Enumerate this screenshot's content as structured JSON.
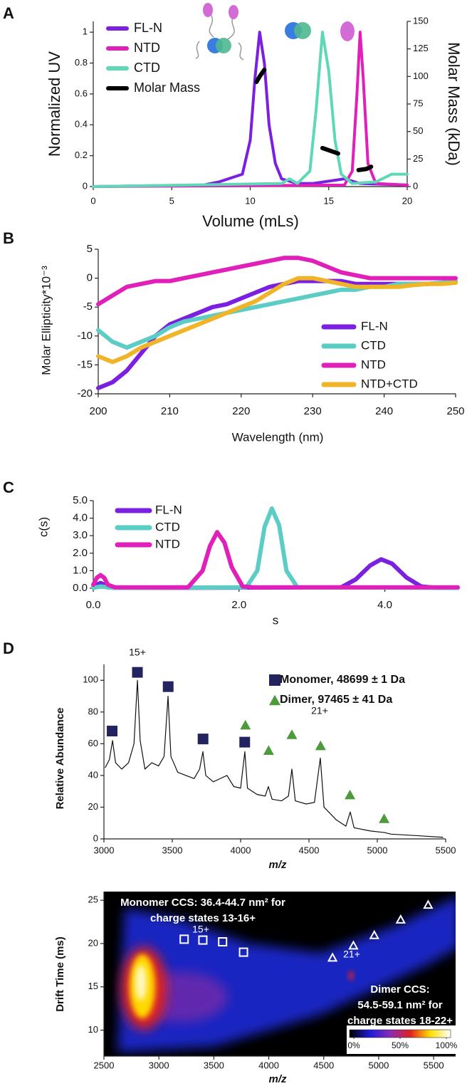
{
  "chart_data": [
    {
      "panel": "A",
      "type": "line",
      "xlabel": "Volume (mLs)",
      "ylabel": "Normalized UV",
      "y2label": "Molar Mass (kDa)",
      "xlim": [
        0,
        20
      ],
      "xticks": [
        0,
        5,
        10,
        15,
        20
      ],
      "ylim": [
        0,
        1.07
      ],
      "yticks": [
        0,
        0.2,
        0.4,
        0.6,
        0.8,
        1
      ],
      "y2lim": [
        0,
        150
      ],
      "y2ticks": [
        0,
        25,
        50,
        75,
        100,
        125,
        150
      ],
      "legend": "upper left",
      "series": [
        {
          "name": "FL-N",
          "color": "#7b1fe0",
          "x": [
            0,
            7,
            8,
            9.5,
            10,
            10.3,
            10.6,
            10.9,
            11.2,
            11.6,
            12,
            13,
            14,
            16,
            17,
            20
          ],
          "values": [
            0,
            0.01,
            0.03,
            0.08,
            0.3,
            0.7,
            1,
            0.8,
            0.4,
            0.15,
            0.05,
            0.02,
            0.02,
            0.05,
            0.02,
            0.01
          ]
        },
        {
          "name": "NTD",
          "color": "#e020b8",
          "x": [
            0,
            16,
            16.5,
            16.8,
            17,
            17.2,
            17.5,
            18,
            20
          ],
          "values": [
            0,
            0.01,
            0.1,
            0.6,
            1,
            0.7,
            0.15,
            0.02,
            0.01
          ]
        },
        {
          "name": "CTD",
          "color": "#5fd8b8",
          "x": [
            0,
            12,
            12.5,
            13,
            13.8,
            14.2,
            14.6,
            15,
            15.4,
            15.8,
            16.5,
            18,
            19,
            20
          ],
          "values": [
            0,
            0.02,
            0.05,
            0.02,
            0.1,
            0.5,
            1,
            0.75,
            0.3,
            0.08,
            0.02,
            0.03,
            0.08,
            0.08
          ]
        },
        {
          "name": "Molar Mass",
          "color": "#000000",
          "axis": "y2",
          "x": [
            10.4,
            10.6,
            10.9,
            12,
            14.6,
            15,
            15.6,
            16.5,
            16.9,
            17.4,
            17.7
          ],
          "values": [
            95,
            100,
            106,
            null,
            35,
            33,
            30,
            null,
            15,
            16,
            18
          ]
        }
      ]
    },
    {
      "panel": "B",
      "type": "line",
      "xlabel": "Wavelength (nm)",
      "ylabel": "Molar Ellipticity*10⁻³",
      "xlim": [
        200,
        250
      ],
      "xticks": [
        200,
        210,
        220,
        230,
        240,
        250
      ],
      "ylim": [
        -20,
        5
      ],
      "yticks": [
        -20,
        -15,
        -10,
        -5,
        0,
        5
      ],
      "legend": "lower right",
      "x": [
        200,
        202,
        204,
        206,
        208,
        210,
        212,
        214,
        216,
        218,
        220,
        222,
        224,
        226,
        228,
        230,
        232,
        234,
        236,
        238,
        240,
        242,
        244,
        246,
        248,
        250
      ],
      "series": [
        {
          "name": "FL-N",
          "color": "#7b1fe0",
          "values": [
            -19,
            -18,
            -16,
            -13,
            -10,
            -8,
            -7,
            -6,
            -5,
            -4.5,
            -3.5,
            -2.5,
            -1.5,
            -1,
            -0.5,
            -0.5,
            -0.5,
            -0.5,
            -1,
            -1,
            -1,
            -1,
            -1,
            -1,
            -0.8,
            -0.5
          ]
        },
        {
          "name": "CTD",
          "color": "#5ccdc4",
          "values": [
            -9,
            -11,
            -12,
            -11,
            -10,
            -8.5,
            -7.5,
            -7,
            -6.5,
            -6,
            -5.5,
            -5,
            -4.5,
            -4,
            -3.5,
            -3,
            -2.5,
            -2,
            -2,
            -1.5,
            -1.5,
            -1,
            -1,
            -1,
            -0.8,
            -0.5
          ]
        },
        {
          "name": "NTD",
          "color": "#e020b8",
          "values": [
            -4.5,
            -3,
            -1.5,
            -1,
            -0.5,
            -0.5,
            0,
            0.5,
            1,
            1.5,
            2,
            2.5,
            3,
            3.5,
            3.5,
            3,
            2,
            1,
            0.5,
            0,
            0,
            0,
            0,
            0,
            0,
            0
          ]
        },
        {
          "name": "NTD+CTD",
          "color": "#f0b428",
          "values": [
            -13.5,
            -14.5,
            -13.5,
            -12,
            -11,
            -10,
            -9,
            -8,
            -7,
            -6,
            -5,
            -4,
            -2.5,
            -1,
            0,
            0,
            -0.5,
            -1,
            -1.5,
            -1.5,
            -1.5,
            -1.5,
            -1.2,
            -1,
            -1,
            -0.8
          ]
        }
      ]
    },
    {
      "panel": "C",
      "type": "line",
      "xlabel": "s",
      "ylabel": "c(s)",
      "xlim": [
        0,
        5
      ],
      "xticks": [
        {
          "value": 0,
          "label": "0.0"
        },
        {
          "value": 2,
          "label": "2.0"
        },
        {
          "value": 4,
          "label": "4.0"
        }
      ],
      "ylim": [
        0,
        5
      ],
      "yticks": [
        {
          "value": 0,
          "label": "0.0"
        },
        {
          "value": 1,
          "label": "1.0"
        },
        {
          "value": 2,
          "label": "2.0"
        },
        {
          "value": 3,
          "label": "3.0"
        },
        {
          "value": 4,
          "label": "4.0"
        },
        {
          "value": 5,
          "label": "5.0"
        }
      ],
      "legend": "upper left",
      "series": [
        {
          "name": "FL-N",
          "color": "#7b1fe0",
          "x": [
            0,
            0.05,
            0.1,
            0.15,
            0.2,
            0.3,
            0.5,
            3.4,
            3.6,
            3.8,
            3.95,
            4.1,
            4.3,
            4.5,
            4.7,
            5
          ],
          "values": [
            0.05,
            0.2,
            0.3,
            0.2,
            0.05,
            0.02,
            0.02,
            0.05,
            0.5,
            1.3,
            1.65,
            1.4,
            0.6,
            0.1,
            0.02,
            0.02
          ]
        },
        {
          "name": "CTD",
          "color": "#5ccdc4",
          "x": [
            0,
            0.1,
            0.2,
            0.3,
            2.1,
            2.25,
            2.35,
            2.45,
            2.55,
            2.65,
            2.8,
            5
          ],
          "values": [
            0.02,
            0.1,
            0.05,
            0.02,
            0.05,
            1,
            3.5,
            4.55,
            3.6,
            1,
            0.05,
            0.02
          ]
        },
        {
          "name": "NTD",
          "color": "#e020b8",
          "x": [
            0,
            0.05,
            0.1,
            0.15,
            0.2,
            0.3,
            1.3,
            1.5,
            1.6,
            1.7,
            1.8,
            1.9,
            2.05,
            2.2,
            5
          ],
          "values": [
            0.2,
            0.6,
            0.75,
            0.6,
            0.2,
            0.05,
            0.05,
            1,
            2.4,
            3.2,
            2.6,
            1.2,
            0.1,
            0.05,
            0.05
          ]
        }
      ]
    },
    {
      "panel": "D",
      "type": "spectrum",
      "xlabel": "m/z",
      "ylabel": "Relative Abundance",
      "xlim": [
        3000,
        5500
      ],
      "xticks": [
        3000,
        3500,
        4000,
        4500,
        5000,
        5500
      ],
      "ylim": [
        0,
        110
      ],
      "yticks": [
        0,
        20,
        40,
        60,
        80,
        100
      ],
      "legend": "upper right",
      "annotations": [
        "15+",
        "21+"
      ],
      "trace": {
        "color": "#111111",
        "x": [
          3010,
          3040,
          3063,
          3085,
          3130,
          3180,
          3220,
          3245,
          3265,
          3300,
          3350,
          3400,
          3440,
          3469,
          3490,
          3540,
          3600,
          3660,
          3700,
          3724,
          3745,
          3800,
          3850,
          3900,
          3950,
          4000,
          4031,
          4050,
          4120,
          4180,
          4203,
          4230,
          4300,
          4350,
          4375,
          4400,
          4480,
          4540,
          4583,
          4610,
          4700,
          4770,
          4802,
          4830,
          4950,
          5052,
          5100,
          5300,
          5480
        ],
        "values": [
          45,
          50,
          62,
          48,
          44,
          48,
          60,
          100,
          62,
          44,
          48,
          46,
          52,
          90,
          52,
          42,
          40,
          38,
          44,
          55,
          40,
          36,
          38,
          40,
          33,
          32,
          55,
          32,
          28,
          27,
          33,
          25,
          24,
          27,
          44,
          24,
          22,
          23,
          51,
          20,
          12,
          8,
          17,
          7,
          5,
          4,
          3,
          2,
          1
        ]
      },
      "series": [
        {
          "name": "Monomer, 48699 ± 1 Da",
          "color": "#23235f",
          "marker": "square",
          "x": [
            3060,
            3245,
            3470,
            3725,
            4030
          ],
          "values": [
            68,
            105,
            96,
            63,
            61
          ]
        },
        {
          "name": "Dimer, 97465 ± 41 Da",
          "color": "#4c9a3c",
          "marker": "triangle",
          "x": [
            4035,
            4205,
            4375,
            4585,
            4800,
            5050
          ],
          "values": [
            72,
            56,
            66,
            59,
            28,
            13
          ]
        }
      ]
    },
    {
      "type": "heatmap",
      "xlabel": "m/z",
      "ylabel": "Drift Time (ms)",
      "xlim": [
        2500,
        5700
      ],
      "xticks": [
        2500,
        3000,
        3500,
        4000,
        4500,
        5000,
        5500
      ],
      "ylim": [
        7,
        26
      ],
      "yticks": [
        10,
        15,
        20,
        25
      ],
      "annotations": [
        "Monomer CCS: 36.4-44.7 nm² for",
        "charge states 13-16+",
        "15+",
        "21+",
        "Dimer CCS:",
        "54.5-59.1 nm² for",
        "charge states 18-22+"
      ],
      "colorbar": {
        "colors": [
          "#000000",
          "#1b1bd8",
          "#8a2bb8",
          "#e0201e",
          "#ffe000",
          "#ffffff"
        ],
        "lim": [
          0,
          100
        ],
        "ticks": [
          {
            "value": 0,
            "label": "0%"
          },
          {
            "value": 50,
            "label": "50%"
          },
          {
            "value": 100,
            "label": "100%"
          }
        ]
      },
      "series": [
        {
          "color": "#ffffff",
          "marker": "square",
          "open": true,
          "x": [
            3230,
            3400,
            3580,
            3770
          ],
          "values": [
            20.5,
            20.4,
            20.2,
            19
          ]
        },
        {
          "color": "#ffffff",
          "marker": "triangle",
          "open": true,
          "x": [
            4580,
            4770,
            4960,
            5200,
            5450
          ],
          "values": [
            18.4,
            19.8,
            21,
            22.8,
            24.5
          ]
        }
      ]
    }
  ]
}
